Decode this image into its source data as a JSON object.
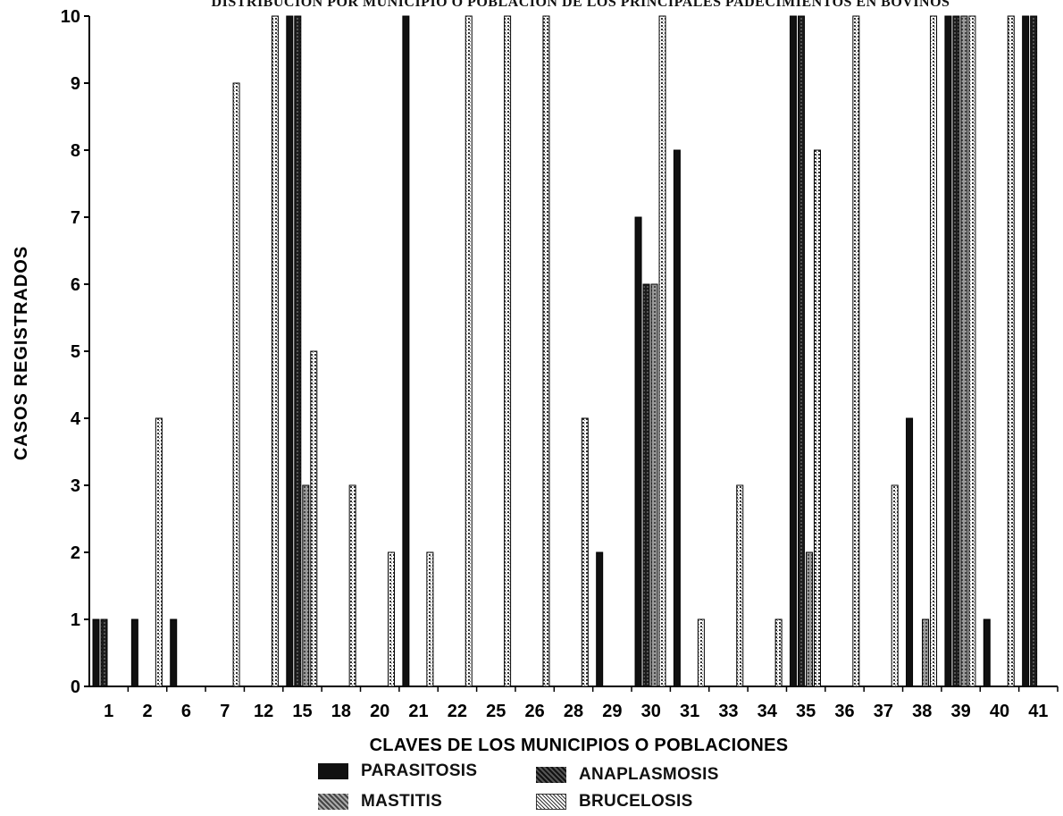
{
  "chart_data": {
    "type": "bar",
    "title": "DISTRIBUCION POR MUNICIPIO O POBLACION DE LOS PRINCIPALES PADECIMIENTOS EN BOVINOS",
    "xlabel": "CLAVES DE LOS MUNICIPIOS O POBLACIONES",
    "ylabel": "CASOS REGISTRADOS",
    "ylim": [
      0,
      10
    ],
    "yticks": [
      "0",
      "1",
      "2",
      "3",
      "4",
      "5",
      "6",
      "7",
      "8",
      "9",
      "10"
    ],
    "categories": [
      "1",
      "2",
      "6",
      "7",
      "12",
      "15",
      "18",
      "20",
      "21",
      "22",
      "25",
      "26",
      "28",
      "29",
      "30",
      "31",
      "33",
      "34",
      "35",
      "36",
      "37",
      "38",
      "39",
      "40",
      "41"
    ],
    "series": [
      {
        "name": "PARASITOSIS",
        "values": [
          1,
          1,
          1,
          0,
          0,
          10,
          0,
          0,
          10,
          0,
          0,
          0,
          0,
          2,
          7,
          8,
          0,
          0,
          10,
          0,
          0,
          4,
          10,
          1,
          10
        ]
      },
      {
        "name": "ANAPLASMOSIS",
        "values": [
          1,
          0,
          0,
          0,
          0,
          10,
          0,
          0,
          0,
          0,
          0,
          0,
          0,
          0,
          6,
          0,
          0,
          0,
          10,
          0,
          0,
          0,
          10,
          0,
          10
        ]
      },
      {
        "name": "MASTITIS",
        "values": [
          0,
          0,
          0,
          0,
          0,
          3,
          0,
          0,
          0,
          0,
          0,
          0,
          0,
          0,
          6,
          0,
          0,
          0,
          2,
          0,
          0,
          1,
          10,
          0,
          0
        ]
      },
      {
        "name": "BRUCELOSIS",
        "values": [
          0,
          4,
          0,
          9,
          10,
          5,
          3,
          2,
          2,
          10,
          10,
          10,
          4,
          0,
          10,
          1,
          3,
          1,
          8,
          10,
          3,
          10,
          10,
          10,
          0
        ]
      }
    ],
    "legend_position": "bottom",
    "grid": false
  },
  "legend_colors": {
    "PARASITOSIS": "#111111",
    "ANAPLASMOSIS": "#2b2b2b",
    "MASTITIS": "#7a7a7a",
    "BRUCELOSIS": "#bdbdbd"
  }
}
